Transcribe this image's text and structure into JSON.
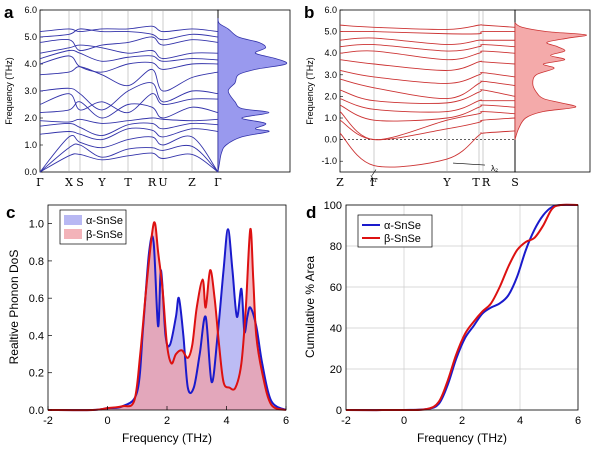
{
  "chart_data": [
    {
      "panel": "a",
      "type": "line",
      "subtype": "phonon-dispersion-with-dos",
      "ylabel": "Frequency (THz)",
      "ylim": [
        0,
        6
      ],
      "yticks": [
        "0.0",
        "1.0",
        "2.0",
        "3.0",
        "4.0",
        "5.0",
        "6.0"
      ],
      "kpoints": [
        "Γ",
        "X",
        "S",
        "Y",
        "T",
        "R",
        "U",
        "Z",
        "Γ"
      ],
      "bands": [
        [
          0,
          0.6,
          0.65,
          0.45,
          0.6,
          0.7,
          0.5,
          0.65,
          0
        ],
        [
          0,
          0.9,
          1.0,
          0.55,
          0.85,
          0.9,
          0.8,
          0.95,
          0
        ],
        [
          0,
          1.3,
          1.1,
          0.9,
          1.2,
          1.3,
          1.0,
          1.3,
          0
        ],
        [
          1.4,
          1.5,
          1.4,
          1.2,
          1.6,
          1.55,
          1.3,
          1.6,
          1.5
        ],
        [
          1.7,
          1.8,
          1.65,
          1.35,
          1.75,
          1.8,
          1.6,
          1.8,
          1.75
        ],
        [
          1.9,
          1.85,
          1.95,
          1.8,
          1.9,
          2.0,
          1.95,
          1.9,
          1.95
        ],
        [
          2.2,
          2.3,
          2.6,
          2.0,
          2.5,
          2.4,
          2.0,
          2.4,
          2.2
        ],
        [
          2.5,
          2.9,
          2.3,
          2.6,
          2.2,
          2.9,
          2.5,
          2.7,
          2.7
        ],
        [
          3.0,
          3.1,
          2.9,
          2.3,
          3.0,
          3.3,
          2.6,
          3.0,
          2.9
        ],
        [
          3.6,
          3.7,
          3.9,
          3.6,
          3.2,
          3.8,
          3.0,
          3.5,
          3.7
        ],
        [
          4.0,
          4.3,
          3.9,
          3.7,
          4.0,
          4.05,
          3.8,
          4.0,
          4.0
        ],
        [
          4.2,
          4.5,
          4.4,
          4.1,
          4.25,
          4.3,
          4.1,
          4.2,
          4.15
        ],
        [
          4.4,
          4.6,
          4.7,
          4.6,
          4.4,
          4.5,
          4.2,
          4.4,
          4.4
        ],
        [
          4.8,
          4.9,
          4.5,
          4.7,
          4.8,
          5.0,
          4.7,
          4.9,
          4.8
        ],
        [
          5.0,
          5.1,
          5.3,
          5.2,
          5.2,
          5.1,
          4.9,
          5.1,
          5.0
        ],
        [
          5.2,
          5.3,
          5.2,
          5.3,
          5.3,
          5.4,
          5.2,
          5.3,
          5.2
        ]
      ],
      "dos": [
        [
          0,
          0
        ],
        [
          0.3,
          0.02
        ],
        [
          0.7,
          0.05
        ],
        [
          1.0,
          0.12
        ],
        [
          1.3,
          0.35
        ],
        [
          1.5,
          0.75
        ],
        [
          1.6,
          0.55
        ],
        [
          1.8,
          0.7
        ],
        [
          2.0,
          0.35
        ],
        [
          2.2,
          0.75
        ],
        [
          2.35,
          0.35
        ],
        [
          2.6,
          0.25
        ],
        [
          3.0,
          0.15
        ],
        [
          3.3,
          0.25
        ],
        [
          3.6,
          0.3
        ],
        [
          3.8,
          0.55
        ],
        [
          4.0,
          1.0
        ],
        [
          4.2,
          0.85
        ],
        [
          4.4,
          0.55
        ],
        [
          4.6,
          0.7
        ],
        [
          4.8,
          0.6
        ],
        [
          5.0,
          0.3
        ],
        [
          5.3,
          0.15
        ],
        [
          5.5,
          0.02
        ],
        [
          5.7,
          0
        ]
      ],
      "color": "#3333aa",
      "fill": "#9999ee"
    },
    {
      "panel": "b",
      "type": "line",
      "subtype": "phonon-dispersion-with-dos",
      "ylabel": "Frequency (THz)",
      "ylim": [
        -1.5,
        6
      ],
      "yticks": [
        "-1.0",
        "0.0",
        "1.0",
        "2.0",
        "3.0",
        "4.0",
        "5.0",
        "6.0"
      ],
      "kpoints": [
        "Z",
        "Γ",
        "Y",
        "T",
        "R",
        "S"
      ],
      "soft_modes": [
        {
          "label": "λ₁",
          "at": "Γ",
          "value": -1.2
        },
        {
          "label": "λ₂",
          "at": "Y",
          "value": -0.9
        }
      ],
      "bands": [
        [
          0.3,
          -1.2,
          -0.9,
          0.2,
          0.3,
          0.4
        ],
        [
          0.9,
          0,
          0.5,
          0.8,
          0.9,
          1.0
        ],
        [
          1.3,
          0,
          0.9,
          1.2,
          1.3,
          1.2
        ],
        [
          1.6,
          0.9,
          1.0,
          1.5,
          1.6,
          1.5
        ],
        [
          1.9,
          1.4,
          1.3,
          1.8,
          1.8,
          1.8
        ],
        [
          2.3,
          1.8,
          1.7,
          2.2,
          2.3,
          2.0
        ],
        [
          2.8,
          2.4,
          1.9,
          2.6,
          2.7,
          2.5
        ],
        [
          3.2,
          2.9,
          2.6,
          3.0,
          3.1,
          2.9
        ],
        [
          3.7,
          3.5,
          3.2,
          3.6,
          3.6,
          3.5
        ],
        [
          4.0,
          4.1,
          3.7,
          4.0,
          4.1,
          4.0
        ],
        [
          4.3,
          4.4,
          4.1,
          4.3,
          4.4,
          4.3
        ],
        [
          4.6,
          4.7,
          4.4,
          4.6,
          4.6,
          4.6
        ],
        [
          5.0,
          5.0,
          4.9,
          4.9,
          5.0,
          5.0
        ],
        [
          5.3,
          5.2,
          5.1,
          5.3,
          5.3,
          5.2
        ]
      ],
      "dos": [
        [
          0,
          0
        ],
        [
          0.5,
          0.05
        ],
        [
          1.0,
          0.15
        ],
        [
          1.3,
          0.4
        ],
        [
          1.5,
          0.85
        ],
        [
          1.7,
          0.65
        ],
        [
          1.9,
          0.4
        ],
        [
          2.2,
          0.3
        ],
        [
          2.6,
          0.25
        ],
        [
          3.0,
          0.3
        ],
        [
          3.3,
          0.55
        ],
        [
          3.5,
          0.4
        ],
        [
          3.7,
          0.7
        ],
        [
          3.9,
          0.5
        ],
        [
          4.1,
          0.7
        ],
        [
          4.3,
          0.6
        ],
        [
          4.5,
          0.45
        ],
        [
          4.7,
          0.75
        ],
        [
          4.85,
          1.0
        ],
        [
          5.0,
          0.45
        ],
        [
          5.2,
          0.1
        ],
        [
          5.4,
          0
        ]
      ],
      "color": "#cc3333",
      "fill": "#f4aaaa"
    },
    {
      "panel": "c",
      "type": "area",
      "xlabel": "Frequency (THz)",
      "ylabel": "Realtive Phonon DoS",
      "xlim": [
        -2,
        6
      ],
      "ylim": [
        0,
        1.1
      ],
      "xticks": [
        "-2",
        "0",
        "2",
        "4",
        "6"
      ],
      "yticks": [
        "0.0",
        "0.2",
        "0.4",
        "0.6",
        "0.8",
        "1.0"
      ],
      "legend_position": "top-left",
      "series": [
        {
          "name": "α-SnSe",
          "color": "#1a1acc",
          "fill": "#a6a6f0",
          "points": [
            [
              -2,
              0
            ],
            [
              -0.5,
              0
            ],
            [
              0,
              0.01
            ],
            [
              0.5,
              0.02
            ],
            [
              1.0,
              0.1
            ],
            [
              1.2,
              0.45
            ],
            [
              1.4,
              0.85
            ],
            [
              1.55,
              0.9
            ],
            [
              1.7,
              0.45
            ],
            [
              1.8,
              0.75
            ],
            [
              1.95,
              0.4
            ],
            [
              2.1,
              0.35
            ],
            [
              2.3,
              0.5
            ],
            [
              2.4,
              0.6
            ],
            [
              2.55,
              0.4
            ],
            [
              2.7,
              0.12
            ],
            [
              2.9,
              0.12
            ],
            [
              3.1,
              0.3
            ],
            [
              3.3,
              0.5
            ],
            [
              3.5,
              0.15
            ],
            [
              3.7,
              0.4
            ],
            [
              3.9,
              0.75
            ],
            [
              4.05,
              0.97
            ],
            [
              4.2,
              0.75
            ],
            [
              4.35,
              0.5
            ],
            [
              4.5,
              0.65
            ],
            [
              4.6,
              0.42
            ],
            [
              4.7,
              0.5
            ],
            [
              4.8,
              0.55
            ],
            [
              5.0,
              0.45
            ],
            [
              5.2,
              0.25
            ],
            [
              5.5,
              0.05
            ],
            [
              6,
              0
            ]
          ]
        },
        {
          "name": "β-SnSe",
          "color": "#dd1111",
          "fill": "#f0a0a8",
          "points": [
            [
              -2,
              0
            ],
            [
              -0.5,
              0
            ],
            [
              0,
              0.01
            ],
            [
              0.5,
              0.02
            ],
            [
              0.9,
              0.05
            ],
            [
              1.1,
              0.3
            ],
            [
              1.3,
              0.65
            ],
            [
              1.5,
              0.95
            ],
            [
              1.6,
              1.0
            ],
            [
              1.7,
              0.85
            ],
            [
              1.85,
              0.65
            ],
            [
              2.0,
              0.35
            ],
            [
              2.15,
              0.25
            ],
            [
              2.3,
              0.3
            ],
            [
              2.5,
              0.32
            ],
            [
              2.7,
              0.28
            ],
            [
              2.85,
              0.35
            ],
            [
              3.0,
              0.55
            ],
            [
              3.2,
              0.7
            ],
            [
              3.3,
              0.55
            ],
            [
              3.45,
              0.75
            ],
            [
              3.6,
              0.6
            ],
            [
              3.75,
              0.35
            ],
            [
              3.9,
              0.15
            ],
            [
              4.1,
              0.12
            ],
            [
              4.3,
              0.12
            ],
            [
              4.5,
              0.25
            ],
            [
              4.65,
              0.55
            ],
            [
              4.8,
              0.97
            ],
            [
              4.9,
              0.7
            ],
            [
              5.0,
              0.4
            ],
            [
              5.2,
              0.2
            ],
            [
              5.5,
              0.03
            ],
            [
              6,
              0
            ]
          ]
        }
      ]
    },
    {
      "panel": "d",
      "type": "line",
      "xlabel": "Frequency (THz)",
      "ylabel": "Cumulative % Area",
      "xlim": [
        -2,
        6
      ],
      "ylim": [
        0,
        100
      ],
      "xticks": [
        "-2",
        "0",
        "2",
        "4",
        "6"
      ],
      "yticks": [
        "0",
        "20",
        "40",
        "60",
        "80",
        "100"
      ],
      "grid": true,
      "legend_position": "top-left",
      "series": [
        {
          "name": "α-SnSe",
          "color": "#1a1acc",
          "points": [
            [
              -2,
              0
            ],
            [
              0,
              0
            ],
            [
              0.8,
              0.5
            ],
            [
              1.2,
              3
            ],
            [
              1.5,
              12
            ],
            [
              1.8,
              25
            ],
            [
              2.1,
              35
            ],
            [
              2.4,
              41
            ],
            [
              2.7,
              47
            ],
            [
              3.0,
              50
            ],
            [
              3.3,
              52
            ],
            [
              3.6,
              56
            ],
            [
              3.9,
              65
            ],
            [
              4.2,
              78
            ],
            [
              4.5,
              88
            ],
            [
              4.8,
              95
            ],
            [
              5.1,
              99
            ],
            [
              5.4,
              100
            ],
            [
              6,
              100
            ]
          ]
        },
        {
          "name": "β-SnSe",
          "color": "#dd1111",
          "points": [
            [
              -2,
              0
            ],
            [
              0,
              0
            ],
            [
              0.8,
              0.5
            ],
            [
              1.2,
              4
            ],
            [
              1.5,
              14
            ],
            [
              1.8,
              27
            ],
            [
              2.1,
              37
            ],
            [
              2.4,
              43
            ],
            [
              2.7,
              48
            ],
            [
              3.0,
              52
            ],
            [
              3.3,
              60
            ],
            [
              3.6,
              70
            ],
            [
              3.9,
              78
            ],
            [
              4.2,
              82
            ],
            [
              4.5,
              84
            ],
            [
              4.8,
              90
            ],
            [
              5.1,
              98
            ],
            [
              5.4,
              100
            ],
            [
              6,
              100
            ]
          ]
        }
      ]
    }
  ]
}
